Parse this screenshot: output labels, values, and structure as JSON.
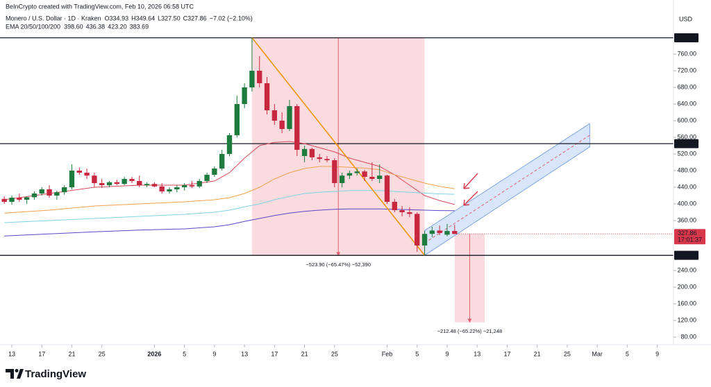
{
  "header": {
    "credit": "BeInCrypto created with TradingView.com, Feb 10, 2026 06:58 UTC",
    "symbol": "Monero / U.S. Dollar · 1D · Kraken",
    "ohlc": [
      "O334.93",
      "H349.64",
      "L327.50",
      "C327.86",
      "−7.02 (−2.10%)"
    ],
    "ema_title": "EMA 20/50/100/200"
  },
  "brand": "TradingView",
  "chart_data": {
    "type": "candlestick",
    "currency": "USD",
    "up_color": "#1e7b3e",
    "down_color": "#c8283f",
    "x": [
      -1,
      0,
      1,
      2,
      3,
      4,
      5,
      6,
      7,
      8,
      9,
      10,
      11,
      12,
      13,
      14,
      15,
      16,
      17,
      18,
      19,
      20,
      21,
      22,
      23,
      24,
      25,
      26,
      27,
      28,
      29,
      30,
      31,
      32,
      33,
      34,
      35,
      36,
      37,
      38,
      39,
      40,
      41,
      42,
      43,
      44,
      45,
      46,
      47,
      48,
      49,
      50,
      51,
      52,
      53,
      54,
      55,
      56,
      57,
      58,
      59
    ],
    "open": [
      412,
      405,
      415,
      410,
      416,
      425,
      435,
      420,
      428,
      440,
      480,
      475,
      468,
      450,
      445,
      452,
      448,
      460,
      455,
      445,
      448,
      442,
      430,
      435,
      440,
      445,
      442,
      455,
      470,
      485,
      520,
      565,
      640,
      680,
      720,
      690,
      625,
      600,
      580,
      635,
      515,
      532,
      512,
      508,
      505,
      450,
      468,
      474,
      478,
      465,
      460,
      468,
      405,
      385,
      380,
      376,
      300,
      328,
      336,
      326,
      334.93
    ],
    "high": [
      418,
      420,
      425,
      418,
      430,
      440,
      445,
      432,
      445,
      495,
      488,
      485,
      475,
      460,
      455,
      458,
      465,
      465,
      468,
      452,
      452,
      450,
      440,
      445,
      450,
      455,
      460,
      475,
      490,
      530,
      570,
      660,
      690,
      799.18,
      755,
      705,
      640,
      620,
      650,
      640,
      540,
      535,
      520,
      515,
      510,
      475,
      480,
      485,
      482,
      500,
      495,
      470,
      412,
      395,
      392,
      380,
      335,
      345,
      348,
      352,
      349.64
    ],
    "low": [
      400,
      398,
      405,
      400,
      410,
      420,
      415,
      410,
      422,
      435,
      470,
      460,
      440,
      438,
      440,
      445,
      445,
      450,
      440,
      440,
      440,
      425,
      425,
      428,
      432,
      438,
      438,
      450,
      465,
      480,
      515,
      560,
      630,
      670,
      680,
      615,
      590,
      570,
      575,
      515,
      500,
      505,
      500,
      500,
      440,
      440,
      460,
      468,
      455,
      455,
      450,
      400,
      380,
      370,
      368,
      285,
      276.38,
      320,
      325,
      322,
      327.5
    ],
    "close": [
      405,
      415,
      410,
      416,
      425,
      435,
      420,
      428,
      440,
      480,
      475,
      468,
      450,
      445,
      452,
      448,
      460,
      455,
      445,
      448,
      442,
      430,
      435,
      440,
      445,
      442,
      455,
      470,
      485,
      520,
      565,
      640,
      680,
      720,
      690,
      625,
      600,
      580,
      635,
      530,
      532,
      512,
      508,
      505,
      450,
      468,
      474,
      478,
      465,
      460,
      468,
      405,
      385,
      380,
      376,
      300,
      328,
      336,
      330,
      334.88,
      327.86
    ],
    "xlim": [
      -1.573,
      88.16
    ],
    "xticks": [
      {
        "value": 0,
        "label": "13"
      },
      {
        "value": 4,
        "label": "17"
      },
      {
        "value": 8,
        "label": "21"
      },
      {
        "value": 12,
        "label": "25"
      },
      {
        "value": 19,
        "label": "2026"
      },
      {
        "value": 23,
        "label": "5"
      },
      {
        "value": 27,
        "label": "9"
      },
      {
        "value": 31,
        "label": "13"
      },
      {
        "value": 35,
        "label": "17"
      },
      {
        "value": 39,
        "label": "21"
      },
      {
        "value": 43,
        "label": "25"
      },
      {
        "value": 50,
        "label": "Feb"
      },
      {
        "value": 54,
        "label": "5"
      },
      {
        "value": 58,
        "label": "9"
      },
      {
        "value": 62,
        "label": "13"
      },
      {
        "value": 66,
        "label": "17"
      },
      {
        "value": 70,
        "label": "21"
      },
      {
        "value": 74,
        "label": "25"
      },
      {
        "value": 78,
        "label": "Mar"
      },
      {
        "value": 82,
        "label": "5"
      },
      {
        "value": 86,
        "label": "9"
      }
    ],
    "ylim": [
      61.67,
      823.33
    ],
    "yticks": [
      {
        "value": 80,
        "label": "80.00"
      },
      {
        "value": 120,
        "label": "120.00"
      },
      {
        "value": 160,
        "label": "160.00"
      },
      {
        "value": 200,
        "label": "200.00"
      },
      {
        "value": 240,
        "label": "240.00"
      },
      {
        "value": 360,
        "label": "360.00"
      },
      {
        "value": 400,
        "label": "400.00"
      },
      {
        "value": 440,
        "label": "440.00"
      },
      {
        "value": 480,
        "label": "480.00"
      },
      {
        "value": 520,
        "label": "520.00"
      },
      {
        "value": 560,
        "label": "560.00"
      },
      {
        "value": 600,
        "label": "600.00"
      },
      {
        "value": 640,
        "label": "640.00"
      },
      {
        "value": 680,
        "label": "680.00"
      },
      {
        "value": 720,
        "label": "720.00"
      },
      {
        "value": 760,
        "label": "760.00"
      }
    ],
    "levels": [
      {
        "value": 799.18,
        "label": "799.18"
      },
      {
        "value": 544.83,
        "label": "544.83"
      },
      {
        "value": 276.38,
        "label": "276.38"
      }
    ],
    "last_price": {
      "value": 327.86,
      "label": "327.86",
      "countdown": "17:01:37",
      "color": "#d9374b"
    },
    "ema": {
      "x": [
        -1,
        5,
        11,
        17,
        23,
        27,
        29,
        31,
        33,
        35,
        37,
        39,
        41,
        43,
        45,
        47,
        49,
        51,
        53,
        55,
        57,
        59
      ],
      "series": [
        {
          "color": "#d9485a",
          "label": "398.60",
          "values": [
            410,
            425,
            440,
            445,
            445,
            455,
            475,
            510,
            540,
            548,
            550,
            545,
            535,
            525,
            510,
            500,
            490,
            470,
            445,
            420,
            408,
            398.6
          ]
        },
        {
          "color": "#f0a04b",
          "label": "436.38",
          "values": [
            378,
            385,
            395,
            400,
            405,
            410,
            415,
            425,
            440,
            460,
            475,
            485,
            490,
            490,
            488,
            486,
            482,
            470,
            460,
            450,
            442,
            436.38
          ]
        },
        {
          "color": "#7fd3e6",
          "label": "423.20",
          "values": [
            355,
            360,
            365,
            370,
            375,
            380,
            385,
            393,
            400,
            410,
            418,
            425,
            428,
            430,
            432,
            432,
            432,
            430,
            428,
            426,
            424,
            423.2
          ]
        },
        {
          "color": "#5b45c9",
          "label": "383.69",
          "values": [
            323,
            328,
            333,
            337,
            340,
            345,
            350,
            358,
            365,
            372,
            378,
            382,
            385,
            387,
            388,
            388,
            388,
            387,
            386,
            385,
            384,
            383.69
          ]
        }
      ]
    },
    "measures": [
      {
        "x": [
          32,
          55
        ],
        "top": 799.18,
        "change": -523.9,
        "label": "−523.90 (−65.47%) −52,390"
      },
      {
        "x": [
          59,
          63
        ],
        "top": 327.86,
        "change": -212.48,
        "label": "−212.48 (−65.22%) −21,248"
      }
    ],
    "trendline": {
      "x": [
        32,
        55
      ],
      "y": [
        799.18,
        276.38
      ],
      "color": "#f0960a"
    },
    "channel": {
      "x": [
        55,
        77
      ],
      "lower": [
        276.38,
        537
      ],
      "upper": [
        336,
        593
      ]
    }
  }
}
